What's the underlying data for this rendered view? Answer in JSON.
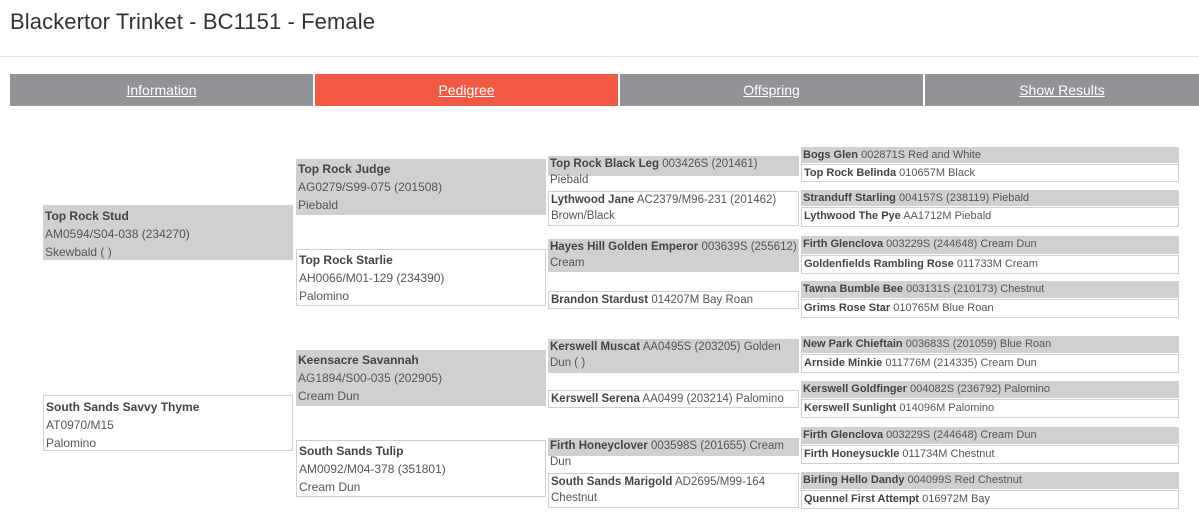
{
  "page": {
    "title": "Blackertor Trinket - BC1151 - Female"
  },
  "tabs": [
    {
      "label": "Information",
      "active": false
    },
    {
      "label": "Pedigree",
      "active": true
    },
    {
      "label": "Offspring",
      "active": false
    },
    {
      "label": "Show Results",
      "active": false
    }
  ],
  "colors": {
    "tab_active": "#f35a45",
    "tab_inactive": "#929297",
    "filled_box": "#d0d0d0"
  },
  "pedigree": {
    "sire": {
      "name": "Top Rock Stud",
      "reg": "AM0594/S04-038 (234270)",
      "color": "Skewbald ( )"
    },
    "dam": {
      "name": "South Sands Savvy Thyme",
      "reg": "AT0970/M15",
      "color": "Palomino"
    },
    "gen2": [
      {
        "name": "Top Rock Judge",
        "reg": "AG0279/S99-075 (201508)",
        "color": "Piebald"
      },
      {
        "name": "Top Rock Starlie",
        "reg": "AH0066/M01-129 (234390)",
        "color": "Palomino"
      },
      {
        "name": "Keensacre Savannah",
        "reg": "AG1894/S00-035 (202905)",
        "color": "Cream Dun"
      },
      {
        "name": "South Sands Tulip",
        "reg": "AM0092/M04-378 (351801)",
        "color": "Cream Dun"
      }
    ],
    "gen3": [
      {
        "name": "Top Rock Black Leg",
        "detail": "003426S (201461) Piebald"
      },
      {
        "name": "Lythwood Jane",
        "detail": "AC2379/M96-231 (201462) Brown/Black"
      },
      {
        "name": "Hayes Hill Golden Emperor",
        "detail": "003639S (255612) Cream"
      },
      {
        "name": "Brandon Stardust",
        "detail": "014207M Bay Roan"
      },
      {
        "name": "Kerswell Muscat",
        "detail": "AA0495S (203205) Golden Dun ( )"
      },
      {
        "name": "Kerswell Serena",
        "detail": "AA0499 (203214) Palomino"
      },
      {
        "name": "Firth Honeyclover",
        "detail": "003598S (201655) Cream Dun"
      },
      {
        "name": "South Sands Marigold",
        "detail": "AD2695/M99-164 Chestnut"
      }
    ],
    "gen4": [
      {
        "name": "Bogs Glen",
        "detail": "002871S Red and White"
      },
      {
        "name": "Top Rock Belinda",
        "detail": "010657M Black"
      },
      {
        "name": "Stranduff Starling",
        "detail": "004157S (238119) Piebald"
      },
      {
        "name": "Lythwood The Pye",
        "detail": "AA1712M Piebald"
      },
      {
        "name": "Firth Glenclova",
        "detail": "003229S (244648) Cream Dun"
      },
      {
        "name": "Goldenfields Rambling Rose",
        "detail": "011733M Cream"
      },
      {
        "name": "Tawna Bumble Bee",
        "detail": "003131S (210173) Chestnut"
      },
      {
        "name": "Grims Rose Star",
        "detail": "010765M Blue Roan"
      },
      {
        "name": "New Park Chieftain",
        "detail": "003683S (201059) Blue Roan"
      },
      {
        "name": "Arnside Minkie",
        "detail": "011776M (214335) Cream Dun"
      },
      {
        "name": "Kerswell Goldfinger",
        "detail": "004082S (236792) Palomino"
      },
      {
        "name": "Kerswell Sunlight",
        "detail": "014096M Palomino"
      },
      {
        "name": "Firth Glenclova",
        "detail": "003229S (244648) Cream Dun"
      },
      {
        "name": "Firth Honeysuckle",
        "detail": "011734M Chestnut"
      },
      {
        "name": "Birling Hello Dandy",
        "detail": "004099S Red Chestnut"
      },
      {
        "name": "Quennel First Attempt",
        "detail": "016972M Bay"
      }
    ]
  }
}
